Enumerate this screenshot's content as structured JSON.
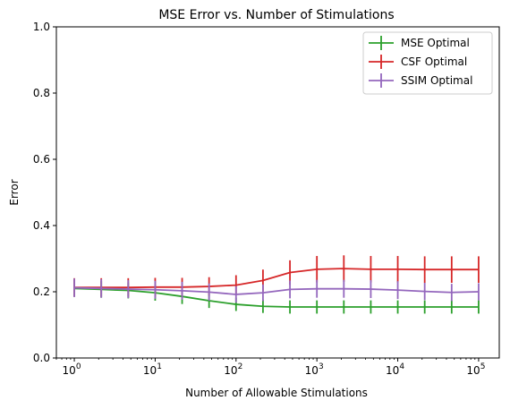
{
  "chart_data": {
    "type": "line",
    "title": "MSE Error vs. Number of Stimulations",
    "xlabel": "Number of Allowable Stimulations",
    "ylabel": "Error",
    "xscale": "log",
    "xlim": [
      0.6,
      180000
    ],
    "ylim": [
      0,
      1
    ],
    "xticks": [
      1,
      10,
      100,
      1000,
      10000,
      100000
    ],
    "xtick_labels": [
      {
        "base": "10",
        "exp": "0"
      },
      {
        "base": "10",
        "exp": "1"
      },
      {
        "base": "10",
        "exp": "2"
      },
      {
        "base": "10",
        "exp": "3"
      },
      {
        "base": "10",
        "exp": "4"
      },
      {
        "base": "10",
        "exp": "5"
      }
    ],
    "yticks": [
      0.0,
      0.2,
      0.4,
      0.6,
      0.8,
      1.0
    ],
    "ytick_labels": [
      "0.0",
      "0.2",
      "0.4",
      "0.6",
      "0.8",
      "1.0"
    ],
    "grid": false,
    "legend_position": "top-right",
    "x": [
      1,
      2.154,
      4.642,
      10,
      21.54,
      46.42,
      100,
      215.4,
      464.2,
      1000,
      2154,
      4642,
      10000,
      21540,
      46420,
      100000
    ],
    "series": [
      {
        "name": "MSE Optimal",
        "color": "#2ca02c",
        "values": [
          0.21,
          0.207,
          0.204,
          0.197,
          0.186,
          0.173,
          0.162,
          0.156,
          0.154,
          0.154,
          0.154,
          0.154,
          0.154,
          0.154,
          0.154,
          0.154
        ],
        "err": [
          0.025,
          0.025,
          0.024,
          0.024,
          0.023,
          0.022,
          0.02,
          0.02,
          0.02,
          0.02,
          0.02,
          0.02,
          0.02,
          0.02,
          0.02,
          0.02
        ]
      },
      {
        "name": "CSF Optimal",
        "color": "#d62728",
        "values": [
          0.213,
          0.213,
          0.213,
          0.214,
          0.214,
          0.216,
          0.22,
          0.234,
          0.258,
          0.268,
          0.27,
          0.268,
          0.268,
          0.267,
          0.267,
          0.267
        ],
        "err": [
          0.028,
          0.028,
          0.028,
          0.028,
          0.028,
          0.028,
          0.03,
          0.033,
          0.037,
          0.04,
          0.04,
          0.04,
          0.04,
          0.04,
          0.04,
          0.04
        ]
      },
      {
        "name": "SSIM Optimal",
        "color": "#9467bd",
        "values": [
          0.212,
          0.21,
          0.208,
          0.206,
          0.203,
          0.199,
          0.192,
          0.197,
          0.207,
          0.209,
          0.209,
          0.208,
          0.205,
          0.201,
          0.198,
          0.2
        ],
        "err": [
          0.028,
          0.028,
          0.027,
          0.027,
          0.027,
          0.026,
          0.025,
          0.025,
          0.027,
          0.027,
          0.027,
          0.027,
          0.027,
          0.026,
          0.026,
          0.026
        ]
      }
    ]
  }
}
